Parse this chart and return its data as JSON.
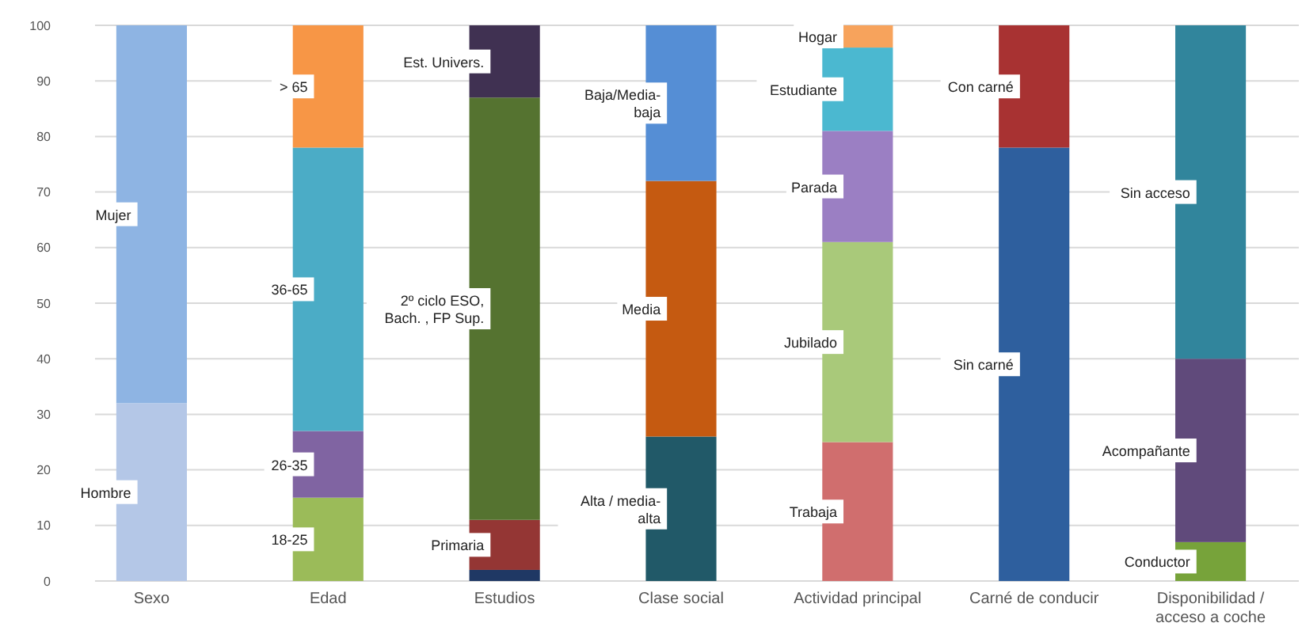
{
  "chart_data": {
    "type": "bar",
    "stacked": true,
    "categories": [
      "Sexo",
      "Edad",
      "Estudios",
      "Clase social",
      "Actividad principal",
      "Carné de conducir",
      "Disponibilidad /\nacceso a coche"
    ],
    "ylim": [
      0,
      100
    ],
    "yticks": [
      0,
      10,
      20,
      30,
      40,
      50,
      60,
      70,
      80,
      90,
      100
    ],
    "grid": "y",
    "series": [
      {
        "name": "Hombre",
        "color": "#b4c7e7",
        "values": [
          32,
          null,
          null,
          null,
          null,
          null,
          null
        ]
      },
      {
        "name": "Mujer",
        "color": "#8eb4e3",
        "values": [
          68,
          null,
          null,
          null,
          null,
          null,
          null
        ]
      },
      {
        "name": "18-25",
        "color": "#9bbb59",
        "values": [
          null,
          15,
          null,
          null,
          null,
          null,
          null
        ]
      },
      {
        "name": "26-35",
        "color": "#8064a2",
        "values": [
          null,
          12,
          null,
          null,
          null,
          null,
          null
        ]
      },
      {
        "name": "36-65",
        "color": "#4bacc6",
        "values": [
          null,
          51,
          null,
          null,
          null,
          null,
          null
        ]
      },
      {
        "name": "> 65",
        "color": "#f79646",
        "values": [
          null,
          22,
          null,
          null,
          null,
          null,
          null
        ]
      },
      {
        "color": "#1f3864",
        "values": [
          null,
          null,
          2,
          null,
          null,
          null,
          null
        ]
      },
      {
        "name": "Primaria",
        "color": "#943634",
        "values": [
          null,
          null,
          9,
          null,
          null,
          null,
          null
        ]
      },
      {
        "name": "2º ciclo ESO,\nBach. , FP Sup.",
        "color": "#557330",
        "values": [
          null,
          null,
          76,
          null,
          null,
          null,
          null
        ]
      },
      {
        "name": "Est. Univers.",
        "color": "#403152",
        "values": [
          null,
          null,
          13,
          null,
          null,
          null,
          null
        ]
      },
      {
        "name": "Alta / media-\nalta",
        "color": "#215968",
        "values": [
          null,
          null,
          null,
          26,
          null,
          null,
          null
        ]
      },
      {
        "name": "Media",
        "color": "#c55a11",
        "values": [
          null,
          null,
          null,
          46,
          null,
          null,
          null
        ]
      },
      {
        "name": "Baja/Media-\nbaja",
        "color": "#558ed5",
        "values": [
          null,
          null,
          null,
          28,
          null,
          null,
          null
        ]
      },
      {
        "name": "Trabaja",
        "color": "#d06e6e",
        "values": [
          null,
          null,
          null,
          null,
          25,
          null,
          null
        ]
      },
      {
        "name": "Jubilado",
        "color": "#a9c97a",
        "values": [
          null,
          null,
          null,
          null,
          36,
          null,
          null
        ]
      },
      {
        "name": "Parada",
        "color": "#9b7fc3",
        "values": [
          null,
          null,
          null,
          null,
          20,
          null,
          null
        ]
      },
      {
        "name": "Estudiante",
        "color": "#4bb8d0",
        "values": [
          null,
          null,
          null,
          null,
          15,
          null,
          null
        ]
      },
      {
        "name": "Hogar",
        "color": "#f7a35c",
        "values": [
          null,
          null,
          null,
          null,
          4,
          null,
          null
        ]
      },
      {
        "name": "Sin carné",
        "color": "#2e5f9e",
        "values": [
          null,
          null,
          null,
          null,
          null,
          78,
          null
        ]
      },
      {
        "name": "Con carné",
        "color": "#a83232",
        "values": [
          null,
          null,
          null,
          null,
          null,
          22,
          null
        ]
      },
      {
        "name": "Conductor",
        "color": "#77a33a",
        "values": [
          null,
          null,
          null,
          null,
          null,
          null,
          7
        ]
      },
      {
        "name": "Acompañante",
        "color": "#604a7b",
        "values": [
          null,
          null,
          null,
          null,
          null,
          null,
          33
        ]
      },
      {
        "name": "Sin acceso",
        "color": "#31859c",
        "values": [
          null,
          null,
          null,
          null,
          null,
          null,
          60
        ]
      }
    ]
  }
}
